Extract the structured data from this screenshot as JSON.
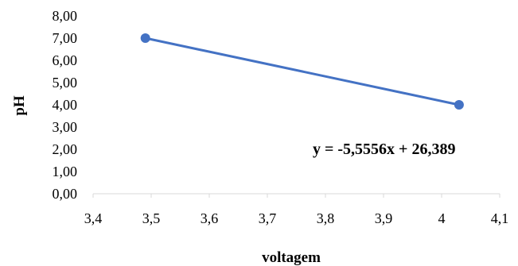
{
  "chart_data": {
    "type": "scatter",
    "xlabel": "voltagem",
    "ylabel": "pH",
    "xlim": [
      3.4,
      4.1
    ],
    "ylim": [
      0.0,
      8.0
    ],
    "x_ticks": [
      "3,4",
      "3,5",
      "3,6",
      "3,7",
      "3,8",
      "3,9",
      "4",
      "4,1"
    ],
    "y_ticks": [
      "0,00",
      "1,00",
      "2,00",
      "3,00",
      "4,00",
      "5,00",
      "6,00",
      "7,00",
      "8,00"
    ],
    "series": [
      {
        "x": [
          3.49,
          4.03
        ],
        "y": [
          7.0,
          4.0
        ],
        "color": "#4472C4",
        "trendline": true
      }
    ],
    "trendline_equation": "y = -5,5556x + 26,389",
    "grid": false,
    "legend": "none"
  }
}
